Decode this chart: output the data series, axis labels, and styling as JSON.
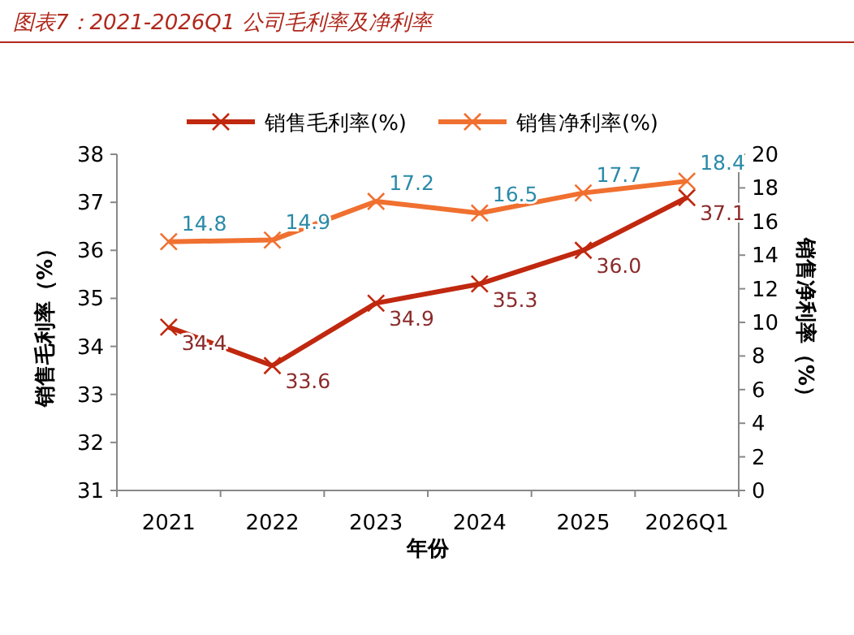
{
  "chart_data": {
    "type": "line",
    "title": "图表7：2021-2026Q1 公司毛利率及净利率",
    "xlabel": "年份",
    "ylabel": "销售毛利率（%）",
    "y2label": "销售净利率（%）",
    "categories": [
      "2021",
      "2022",
      "2023",
      "2024",
      "2025",
      "2026Q1"
    ],
    "series": [
      {
        "name": "销售毛利率(%)",
        "color": "#c0280f",
        "values": [
          34.4,
          33.6,
          34.9,
          35.3,
          36.0,
          37.1
        ],
        "value_labels": [
          "34.4",
          "33.6",
          "34.9",
          "35.3",
          "36.0",
          "37.1"
        ]
      },
      {
        "name": "销售净利率(%)",
        "color": "#f07030",
        "axis": "y2",
        "values": [
          14.8,
          14.9,
          17.2,
          16.5,
          17.7,
          18.4
        ],
        "value_labels": [
          "14.8",
          "14.9",
          "17.2",
          "16.5",
          "17.7",
          "18.4"
        ]
      }
    ],
    "ylim": [
      31,
      38
    ],
    "yticks": [
      31,
      32,
      33,
      34,
      35,
      36,
      37,
      38
    ],
    "y2lim": [
      0,
      20
    ],
    "y2ticks": [
      0,
      2,
      4,
      6,
      8,
      10,
      12,
      14,
      16,
      18,
      20
    ],
    "legend": "top",
    "marker": "cross",
    "line_style": "solid",
    "grid": false
  }
}
